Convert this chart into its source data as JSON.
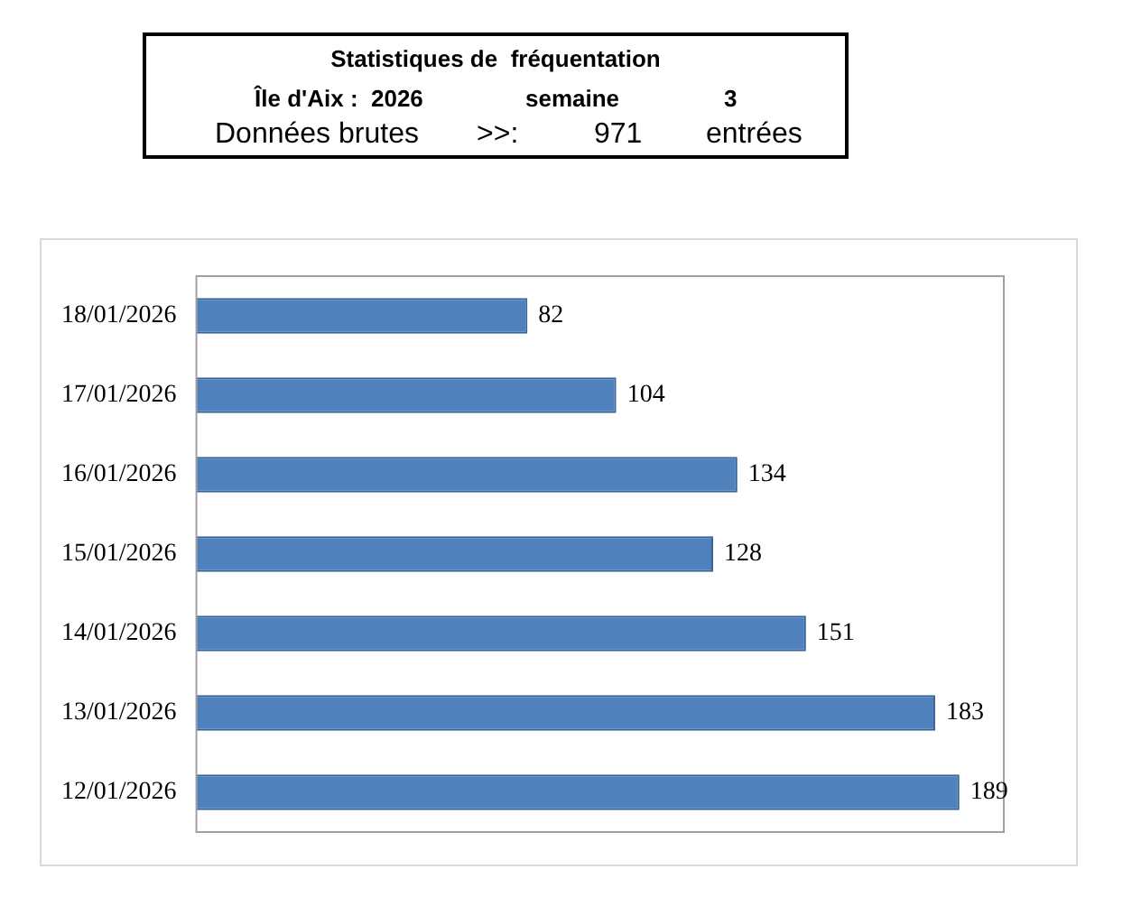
{
  "chart_data": {
    "type": "bar",
    "orientation": "horizontal",
    "title": "Statistiques de  fréquentation",
    "annotations": [
      "Île d'Aix :  2026",
      "semaine",
      "3",
      "Données brutes",
      ">>:",
      "971",
      "entrées"
    ],
    "categories": [
      "18/01/2026",
      "17/01/2026",
      "16/01/2026",
      "15/01/2026",
      "14/01/2026",
      "13/01/2026",
      "12/01/2026"
    ],
    "values": [
      82,
      104,
      134,
      128,
      151,
      183,
      189
    ],
    "color": "#4f81bd",
    "data_labels": true,
    "grid": false,
    "legend": false
  }
}
